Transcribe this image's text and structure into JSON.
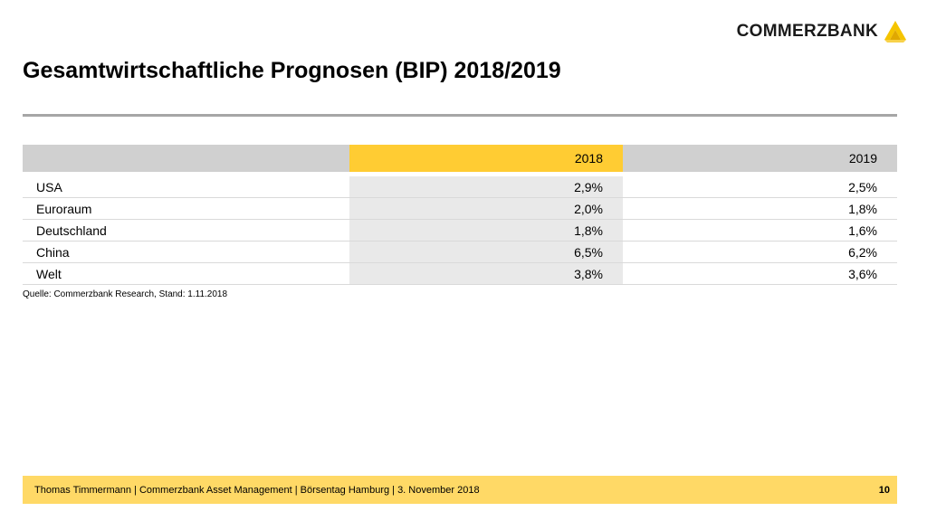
{
  "logo": {
    "text": "COMMERZBANK",
    "mark_color": "#f5c400"
  },
  "title": "Gesamtwirtschaftliche Prognosen (BIP) 2018/2019",
  "table": {
    "headers": [
      "",
      "2018",
      "2019"
    ],
    "rows": [
      {
        "label": "USA",
        "v2018": "2,9%",
        "v2019": "2,5%"
      },
      {
        "label": "Euroraum",
        "v2018": "2,0%",
        "v2019": "1,8%"
      },
      {
        "label": "Deutschland",
        "v2018": "1,8%",
        "v2019": "1,6%"
      },
      {
        "label": "China",
        "v2018": "6,5%",
        "v2019": "6,2%"
      },
      {
        "label": "Welt",
        "v2018": "3,8%",
        "v2019": "3,6%"
      }
    ]
  },
  "source": "Quelle: Commerzbank Research, Stand: 1.11.2018",
  "footer": {
    "text": "Thomas Timmermann | Commerzbank Asset Management | Börsentag Hamburg | 3. November 2018",
    "page": "10"
  },
  "colors": {
    "accent": "#ffcc33",
    "footer_bg": "#ffd966",
    "rule": "#a6a6a6"
  }
}
